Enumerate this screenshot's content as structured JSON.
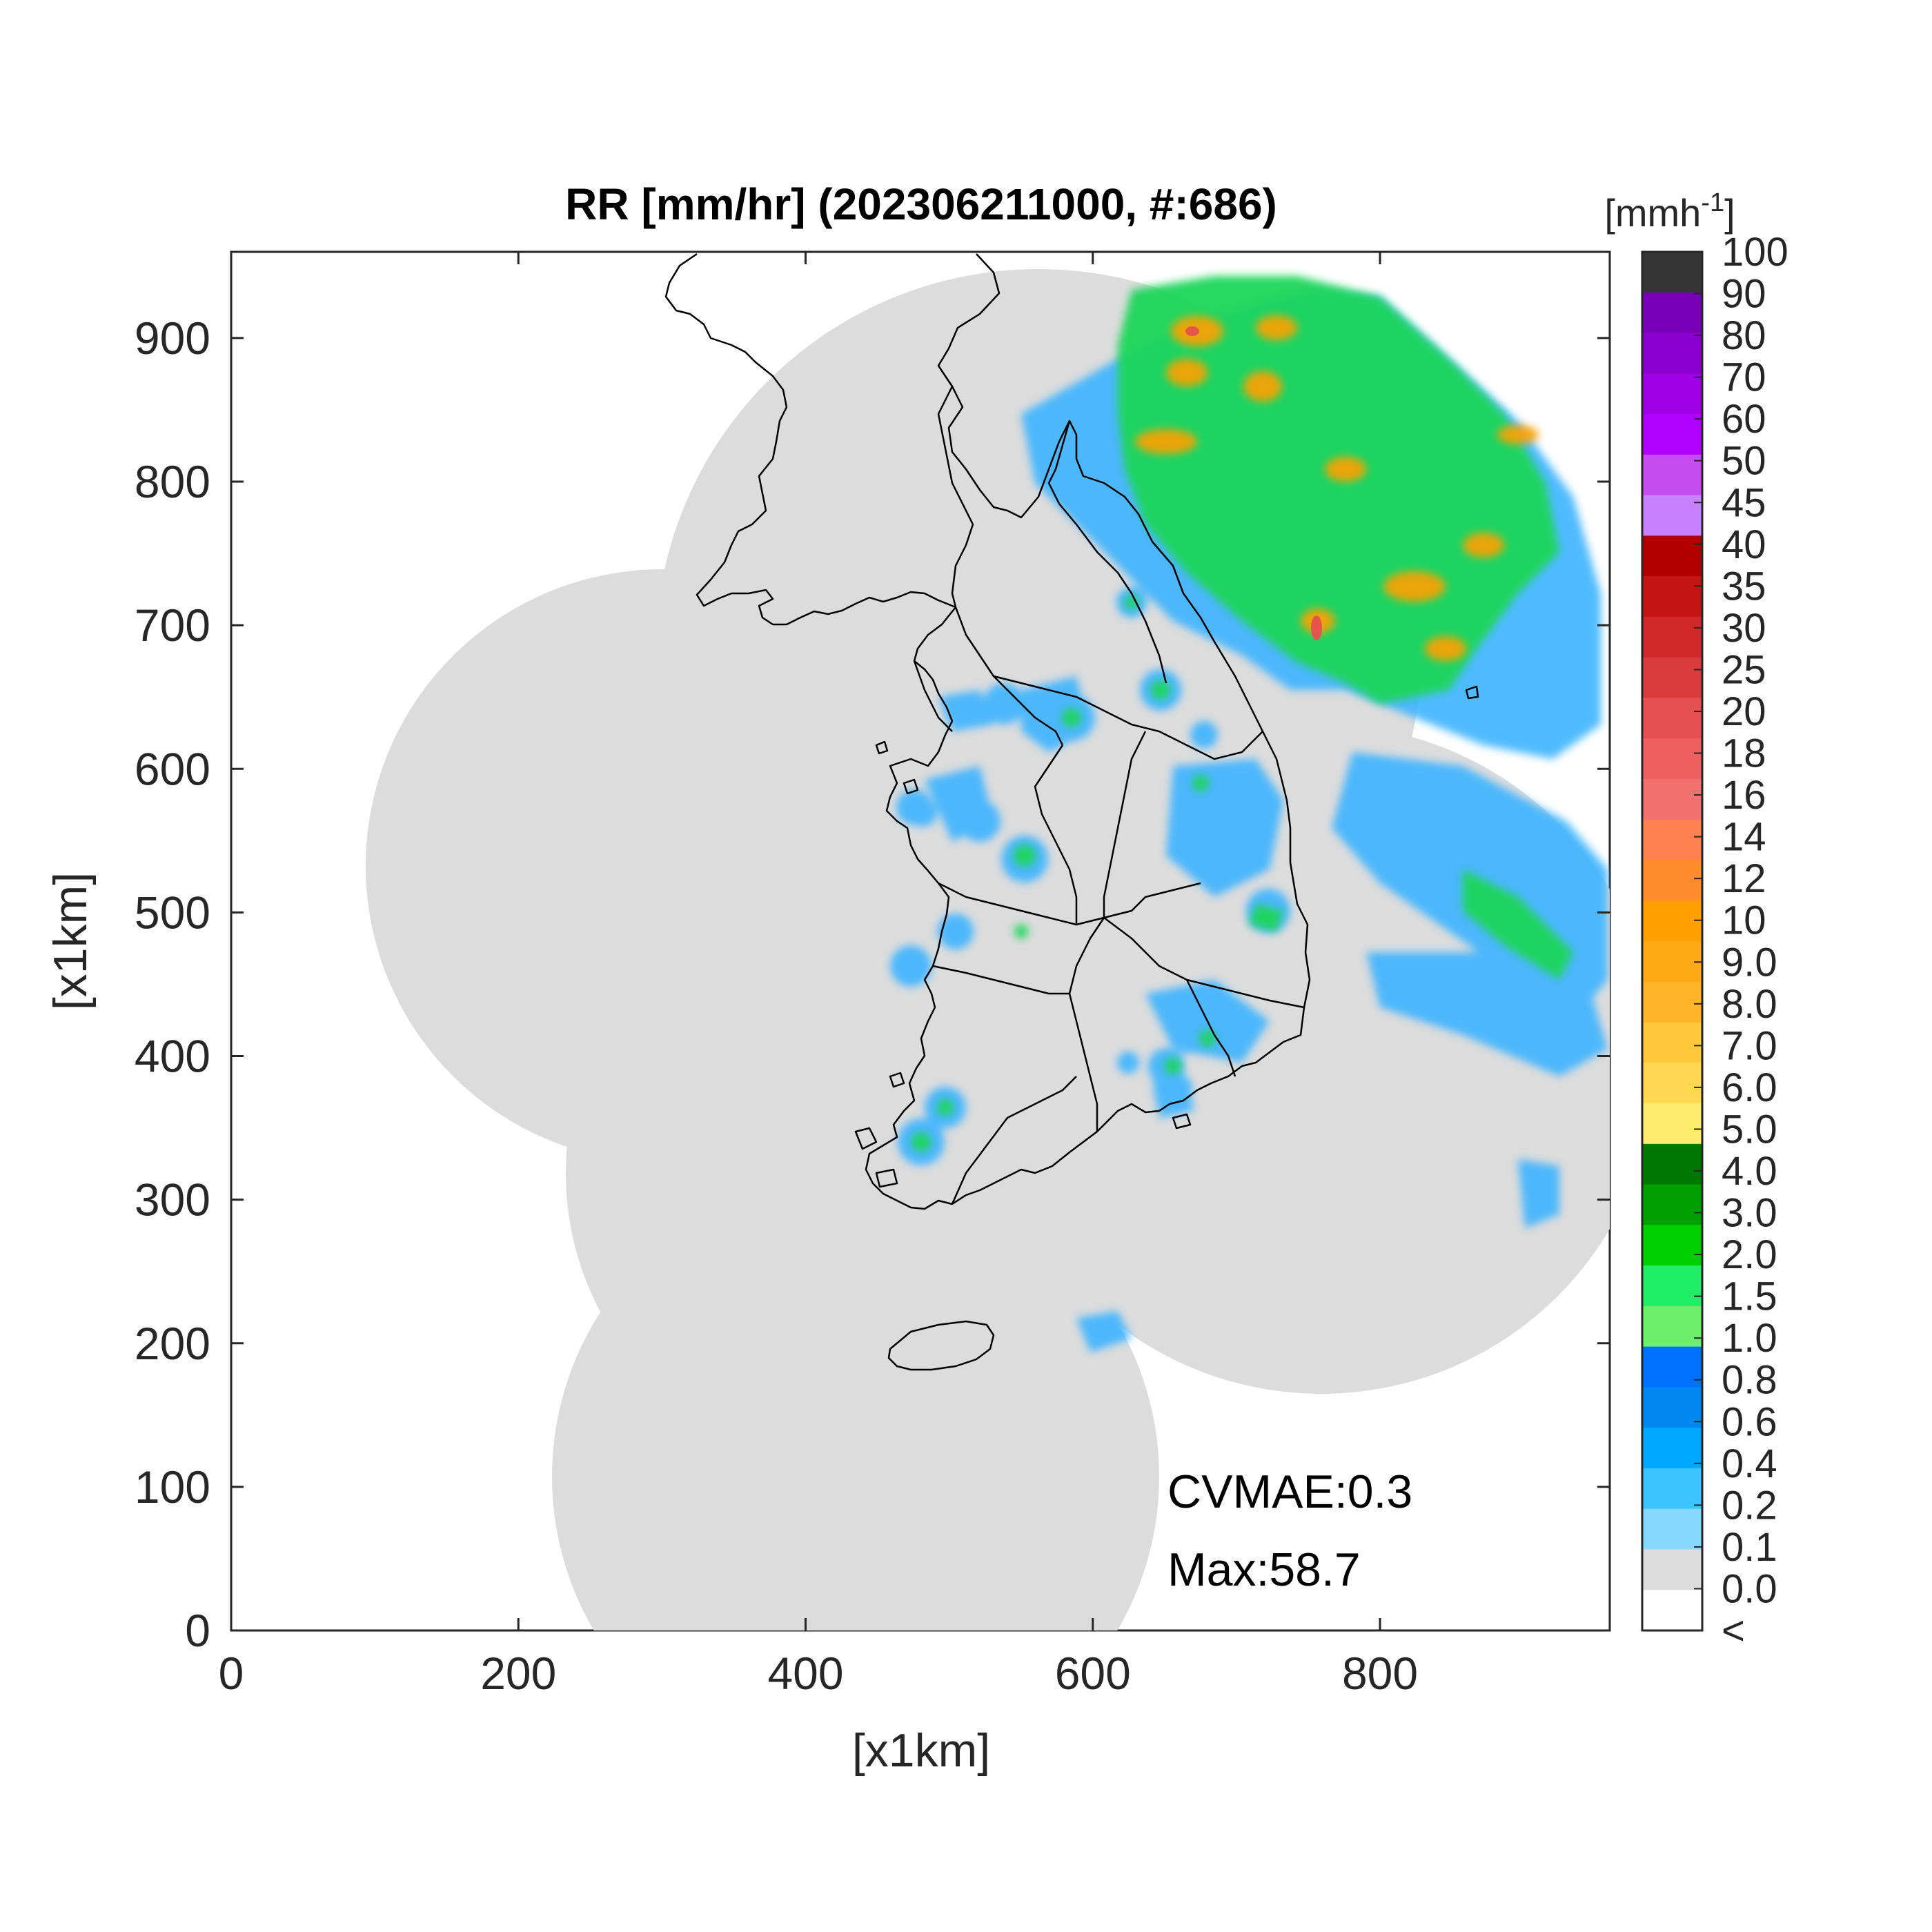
{
  "title": "RR [mm/hr] (202306211000, #:686)",
  "xlabel": "[x1km]",
  "ylabel": "[x1km]",
  "x_ticks": [
    "0",
    "200",
    "400",
    "600",
    "800"
  ],
  "y_ticks": [
    "0",
    "100",
    "200",
    "300",
    "400",
    "500",
    "600",
    "700",
    "800",
    "900"
  ],
  "colorbar": {
    "unit": "[mmh",
    "unit_exp": "-1",
    "unit_close": "]",
    "labels": [
      "100",
      "90",
      "80",
      "70",
      "60",
      "50",
      "45",
      "40",
      "35",
      "30",
      "25",
      "20",
      "18",
      "16",
      "14",
      "12",
      "10",
      "9.0",
      "8.0",
      "7.0",
      "6.0",
      "5.0",
      "4.0",
      "3.0",
      "2.0",
      "1.5",
      "1.0",
      "0.8",
      "0.6",
      "0.4",
      "0.2",
      "0.1",
      "0.0",
      "<"
    ],
    "colors": [
      "#353535",
      "#7a00b8",
      "#8b00d0",
      "#a000e6",
      "#b000ff",
      "#c64cf0",
      "#c880ff",
      "#b30000",
      "#c41414",
      "#d02828",
      "#da3c3c",
      "#e65050",
      "#ee6060",
      "#f27070",
      "#ff8050",
      "#ff8c28",
      "#ffa000",
      "#ffaa14",
      "#ffb428",
      "#ffc83c",
      "#ffd750",
      "#ffeb6e",
      "#007800",
      "#00a000",
      "#00d000",
      "#1fee65",
      "#6cf06c",
      "#0070ff",
      "#0088f0",
      "#00a8ff",
      "#3cc4ff",
      "#87d8ff",
      "#dcdcdc",
      "#ffffff"
    ]
  },
  "annotations": {
    "cvmae": "CVMAE:0.3",
    "max": "Max:58.7"
  },
  "map_style": {
    "coverage_color": "#dcdcdc",
    "light_rain_color": "#3cb4ff",
    "moderate_rain_color": "#1fd65a",
    "heavy_rain_color": "#ffa000",
    "intense_rain_color": "#e65050",
    "coastline_color": "#000000"
  }
}
